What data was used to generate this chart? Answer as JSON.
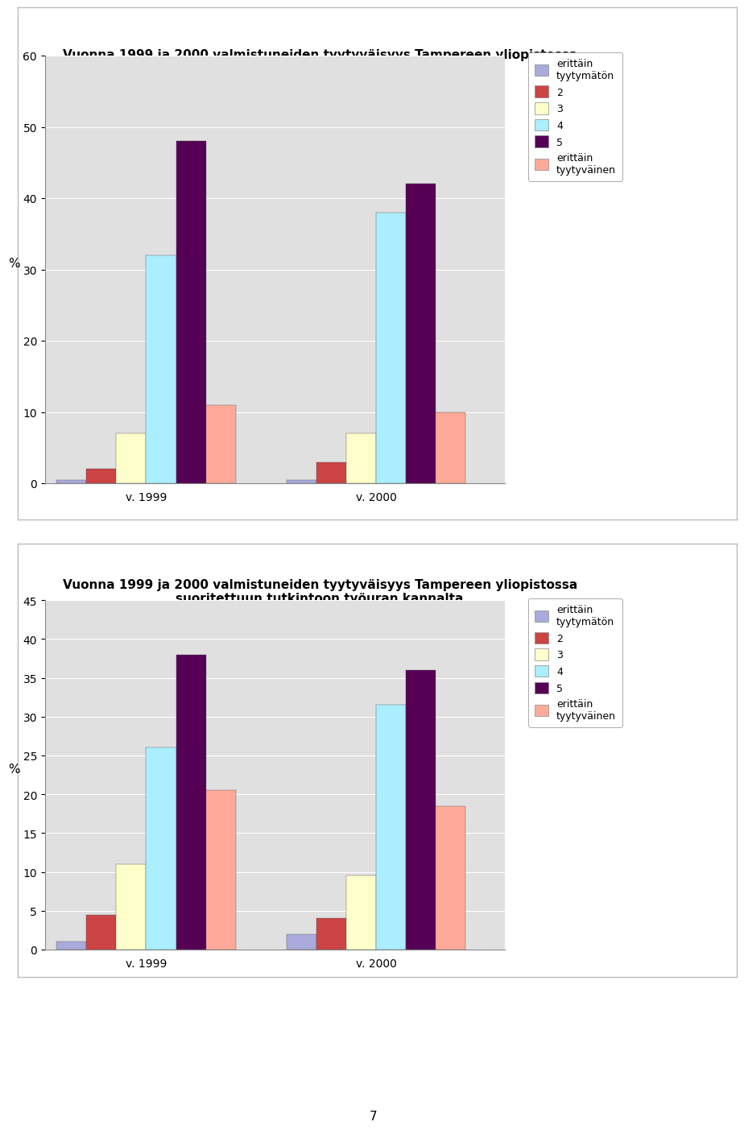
{
  "chart1": {
    "title": "Vuonna 1999 ja 2000 valmistuneiden tyytyväisyys Tampereen yliopistossa\nannettuun opetustarjontaan",
    "groups": [
      "v. 1999",
      "v. 2000"
    ],
    "series": [
      {
        "label": "erittäin\ntyytymätön",
        "color": "#aaaadd",
        "values": [
          0.5,
          0.5
        ]
      },
      {
        "label": "2",
        "color": "#cc4444",
        "values": [
          2,
          3
        ]
      },
      {
        "label": "3",
        "color": "#ffffcc",
        "values": [
          7,
          7
        ]
      },
      {
        "label": "4",
        "color": "#aaeeff",
        "values": [
          32,
          38
        ]
      },
      {
        "label": "5",
        "color": "#550055",
        "values": [
          48,
          42
        ]
      },
      {
        "label": "erittäin\ntyytyväinen",
        "color": "#ffaa99",
        "values": [
          11,
          10
        ]
      }
    ],
    "ylabel": "%",
    "ylim": [
      0,
      60
    ],
    "yticks": [
      0,
      10,
      20,
      30,
      40,
      50,
      60
    ]
  },
  "chart2": {
    "title": "Vuonna 1999 ja 2000 valmistuneiden tyytyväisyys Tampereen yliopistossa\nsuoritettuun tutkintoon tyouran kannalta",
    "title_display": "Vuonna 1999 ja 2000 valmistuneiden tyytyväisyys Tampereen yliopistossa\nsuoritettuun tutkintoon työuran kannalta",
    "groups": [
      "v. 1999",
      "v. 2000"
    ],
    "series": [
      {
        "label": "erittäin\ntyytymätön",
        "color": "#aaaadd",
        "values": [
          1,
          2
        ]
      },
      {
        "label": "2",
        "color": "#cc4444",
        "values": [
          4.5,
          4
        ]
      },
      {
        "label": "3",
        "color": "#ffffcc",
        "values": [
          11,
          9.5
        ]
      },
      {
        "label": "4",
        "color": "#aaeeff",
        "values": [
          26,
          31.5
        ]
      },
      {
        "label": "5",
        "color": "#550055",
        "values": [
          38,
          36
        ]
      },
      {
        "label": "erittäin\ntyytyväinen",
        "color": "#ffaa99",
        "values": [
          20.5,
          18.5
        ]
      }
    ],
    "ylabel": "%",
    "ylim": [
      0,
      45
    ],
    "yticks": [
      0,
      5,
      10,
      15,
      20,
      25,
      30,
      35,
      40,
      45
    ]
  },
  "page_number": "7",
  "background_color": "#ffffff",
  "plot_bg_color": "#e0e0e0",
  "legend_labels": [
    "erittäin\ntyytymätön",
    "2",
    "3",
    "4",
    "5",
    "erittäin\ntyytyväinen"
  ],
  "legend_colors": [
    "#aaaadd",
    "#cc4444",
    "#ffffcc",
    "#aaeeff",
    "#550055",
    "#ffaa99"
  ]
}
